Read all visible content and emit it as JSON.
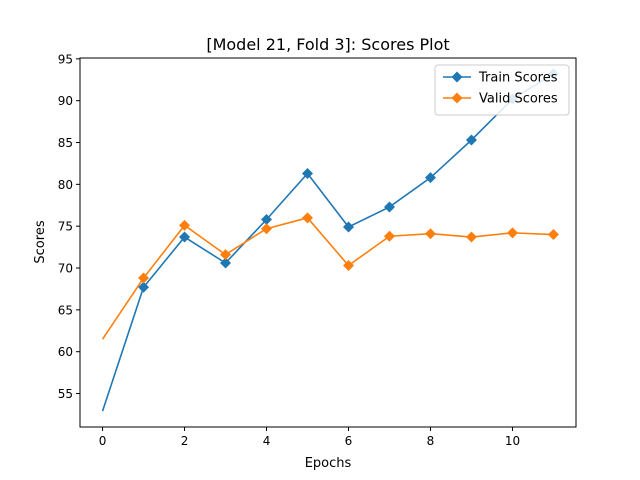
{
  "chart_data": {
    "type": "line",
    "title": "[Model 21, Fold 3]: Scores Plot",
    "xlabel": "Epochs",
    "ylabel": "Scores",
    "xlim": [
      -0.55,
      11.55
    ],
    "ylim": [
      51.0,
      95.1
    ],
    "xticks": [
      0,
      2,
      4,
      6,
      8,
      10
    ],
    "yticks": [
      55,
      60,
      65,
      70,
      75,
      80,
      85,
      90,
      95
    ],
    "grid": false,
    "legend_position": "top-right",
    "x": [
      0,
      1,
      2,
      3,
      4,
      5,
      6,
      7,
      8,
      9,
      10,
      11
    ],
    "series": [
      {
        "name": "Train Scores",
        "color": "#1f77b4",
        "marker": "diamond",
        "values": [
          52.9,
          67.7,
          73.7,
          70.6,
          75.8,
          81.3,
          74.9,
          77.3,
          80.8,
          85.3,
          90.2,
          93.2
        ]
      },
      {
        "name": "Valid Scores",
        "color": "#ff7f0e",
        "marker": "diamond",
        "values": [
          61.5,
          68.8,
          75.1,
          71.6,
          74.7,
          76.0,
          70.3,
          73.8,
          74.1,
          73.7,
          74.2,
          74.0
        ]
      }
    ]
  }
}
